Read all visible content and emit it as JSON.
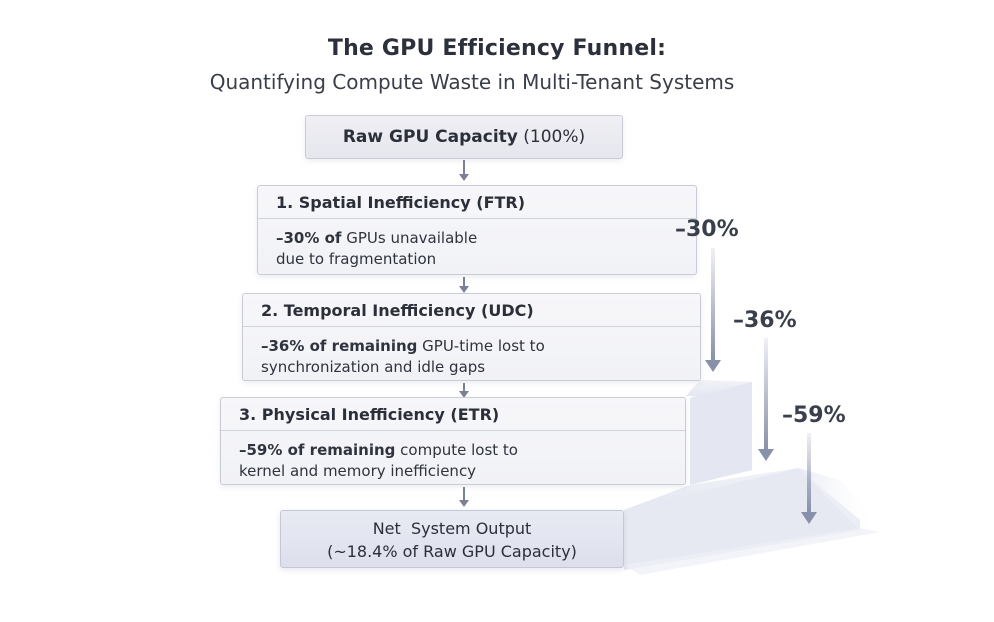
{
  "title": "The GPU Efficiency Funnel:",
  "subtitle": "Quantifying Compute Waste in Multi-Tenant Systems",
  "raw": {
    "label": "Raw GPU Capacity",
    "pct": "(100%)"
  },
  "stages": [
    {
      "heading": "1. Spatial Inefficiency (FTR)",
      "bold": "–30% of",
      "text": " GPUs unavailable",
      "text2": "due to fragmentation",
      "drop": "–30%"
    },
    {
      "heading": "2. Temporal Inefficiency (UDC)",
      "bold": "–36% of remaining",
      "text": " GPU-time lost to",
      "text2": "synchronization and idle gaps",
      "drop": "–36%"
    },
    {
      "heading": "3. Physical Inefficiency (ETR)",
      "bold": "–59% of remaining",
      "text": " compute lost to",
      "text2": "kernel and memory inefficiency",
      "drop": "–59%"
    }
  ],
  "net": {
    "line1": "Net  System Output",
    "line2": "(~18.4% of Raw GPU Capacity)"
  }
}
